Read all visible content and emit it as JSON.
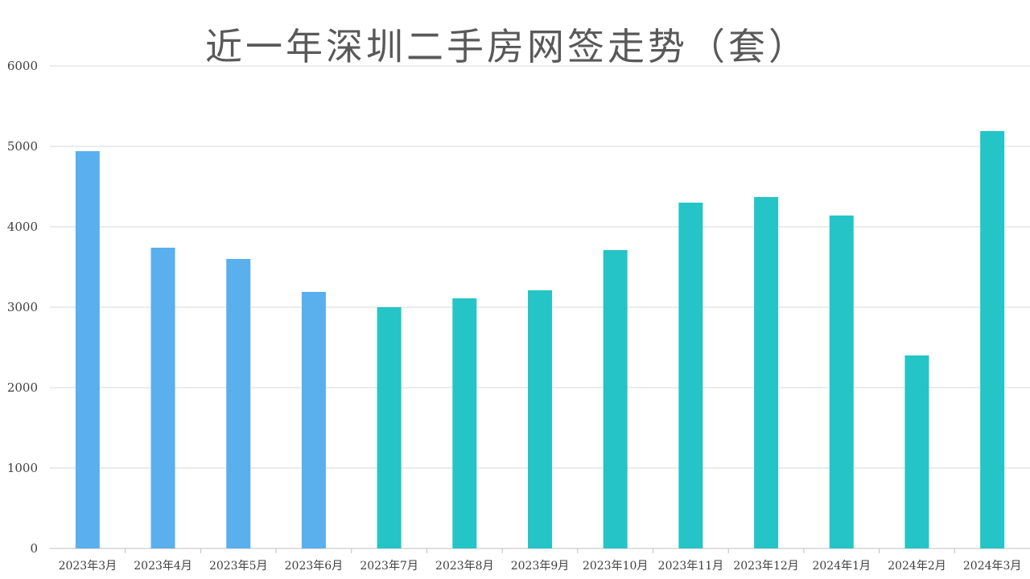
{
  "chart_data": {
    "type": "bar",
    "title": "近一年深圳二手房网签走势（套）",
    "categories": [
      "2023年3月",
      "2023年4月",
      "2023年5月",
      "2023年6月",
      "2023年7月",
      "2023年8月",
      "2023年9月",
      "2023年10月",
      "2023年11月",
      "2023年12月",
      "2024年1月",
      "2024年2月",
      "2024年3月"
    ],
    "values": [
      4940,
      3740,
      3600,
      3190,
      3000,
      3110,
      3210,
      3710,
      4300,
      4370,
      4140,
      2400,
      5190
    ],
    "colors": [
      "#5aafed",
      "#5aafed",
      "#5aafed",
      "#5aafed",
      "#25c4c6",
      "#25c4c6",
      "#25c4c6",
      "#25c4c6",
      "#25c4c6",
      "#25c4c6",
      "#25c4c6",
      "#25c4c6",
      "#25c4c6"
    ],
    "ylim": [
      0,
      6000
    ],
    "yticks": [
      0,
      1000,
      2000,
      3000,
      4000,
      5000,
      6000
    ],
    "grid": true,
    "legend": "none"
  }
}
